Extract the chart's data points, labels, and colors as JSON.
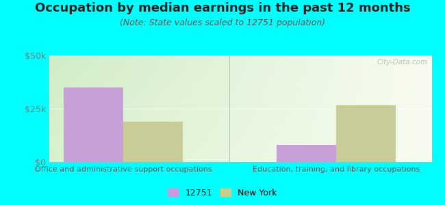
{
  "title": "Occupation by median earnings in the past 12 months",
  "subtitle": "(Note: State values scaled to 12751 population)",
  "categories": [
    "Office and administrative support occupations",
    "Education, training, and library occupations"
  ],
  "series": {
    "12751": [
      35000,
      8000
    ],
    "New York": [
      19000,
      26500
    ]
  },
  "bar_colors": {
    "12751": "#c8a0d8",
    "New York": "#c8cc96"
  },
  "legend_colors": {
    "12751": "#cc99dd",
    "New York": "#cccc88"
  },
  "ylim": [
    0,
    50000
  ],
  "ytick_labels": [
    "$0",
    "$25k",
    "$50k"
  ],
  "ytick_values": [
    0,
    25000,
    50000
  ],
  "background_color": "#00FFFF",
  "watermark": "City-Data.com",
  "title_fontsize": 13,
  "subtitle_fontsize": 9,
  "bar_width": 0.28,
  "group_positions": [
    0.3,
    1.3
  ],
  "xlim": [
    -0.05,
    1.75
  ]
}
